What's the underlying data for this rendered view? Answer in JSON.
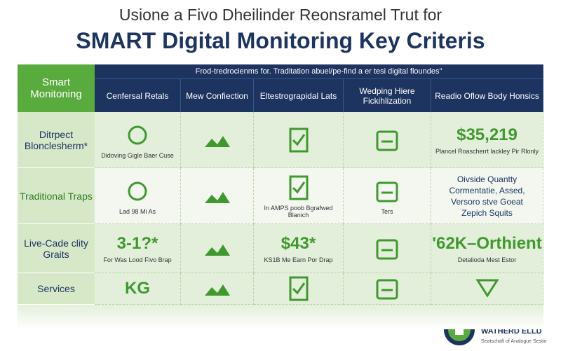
{
  "header": {
    "subtitle": "Usione a Fivo Dheilinder Reonsramel Trut for",
    "title": "SMART Digital Monitoring Key Criteris"
  },
  "table": {
    "corner": "Smart Monitoning",
    "banner": "Frod-tredrocienms for. Traditation abuel/pe-find a er tesi digital floundes\"",
    "columns": [
      "Cenfersal Retals",
      "Mew Confiection",
      "Eltestrograpidal Lats",
      "Wedping Hiere Fickihlization",
      "Readio Oflow Body Honsics"
    ],
    "rows": [
      {
        "label": "Ditrpect Blonclesherm*",
        "cells": [
          {
            "note": "Didoving Gigle Baer Cuse"
          },
          {},
          {},
          {},
          {
            "big": "$35,219",
            "note": "Plancel Roascherrt lackley Pir Rlonly"
          }
        ]
      },
      {
        "label": "Traditional Traps",
        "cells": [
          {
            "note": "Lad  98  Mi As"
          },
          {},
          {
            "note": "In AMPS poob Bgrafwed Blanich"
          },
          {
            "note": "Ters"
          },
          {
            "list": [
              "Oivside Quantty",
              "Cormentatie, Assed,",
              "Versoro stve Goeat",
              "Zepich Squits"
            ]
          }
        ]
      },
      {
        "label": "Live-Cade clity Graits",
        "cells": [
          {
            "big": "3-1?*",
            "note": "For Was Lood Fivo Brap"
          },
          {},
          {
            "big": "$43*",
            "note": "KS1B Me Earn Por Drap"
          },
          {},
          {
            "big": "'62K–Orthient",
            "note": "Detalioda Mest Estor"
          }
        ]
      },
      {
        "label": "Services",
        "cells": [
          {
            "big": "KG"
          },
          {},
          {},
          {},
          {}
        ]
      }
    ]
  },
  "footer": {
    "logo_title": "AABARC ETE WATHERD ELLD",
    "logo_subtitle": "Seatschaft of Analogue Sestio"
  }
}
